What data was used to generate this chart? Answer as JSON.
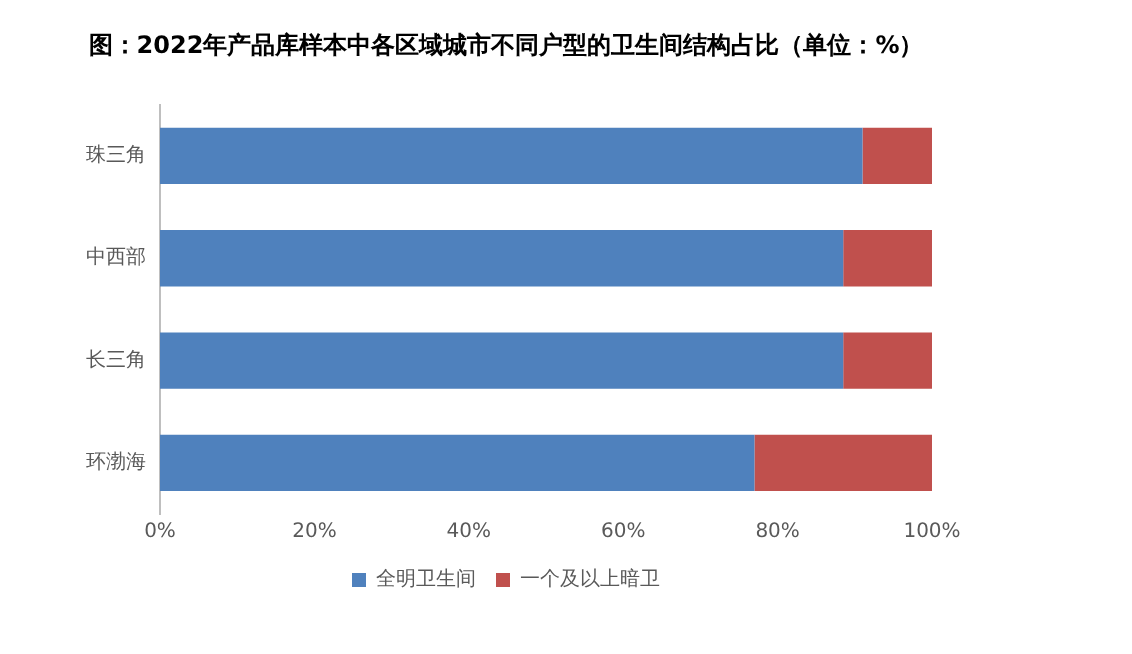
{
  "chart_data": {
    "type": "bar",
    "orientation": "horizontal",
    "stacked": true,
    "title": "图：2022年产品库样本中各区域城市不同户型的卫生间结构占比（单位：%）",
    "categories": [
      "珠三角",
      "中西部",
      "长三角",
      "环渤海"
    ],
    "series": [
      {
        "name": "全明卫生间",
        "color": "#4f81bd",
        "values": [
          91,
          88.5,
          88.5,
          77
        ]
      },
      {
        "name": "一个及以上暗卫",
        "color": "#c0504d",
        "values": [
          9,
          11.5,
          11.5,
          23
        ]
      }
    ],
    "xlim": [
      0,
      100
    ],
    "xticks": [
      {
        "value": 0,
        "label": "0%"
      },
      {
        "value": 20,
        "label": "20%"
      },
      {
        "value": 40,
        "label": "40%"
      },
      {
        "value": 60,
        "label": "60%"
      },
      {
        "value": 80,
        "label": "80%"
      },
      {
        "value": 100,
        "label": "100%"
      }
    ],
    "grid": false,
    "legend": "bottom"
  }
}
